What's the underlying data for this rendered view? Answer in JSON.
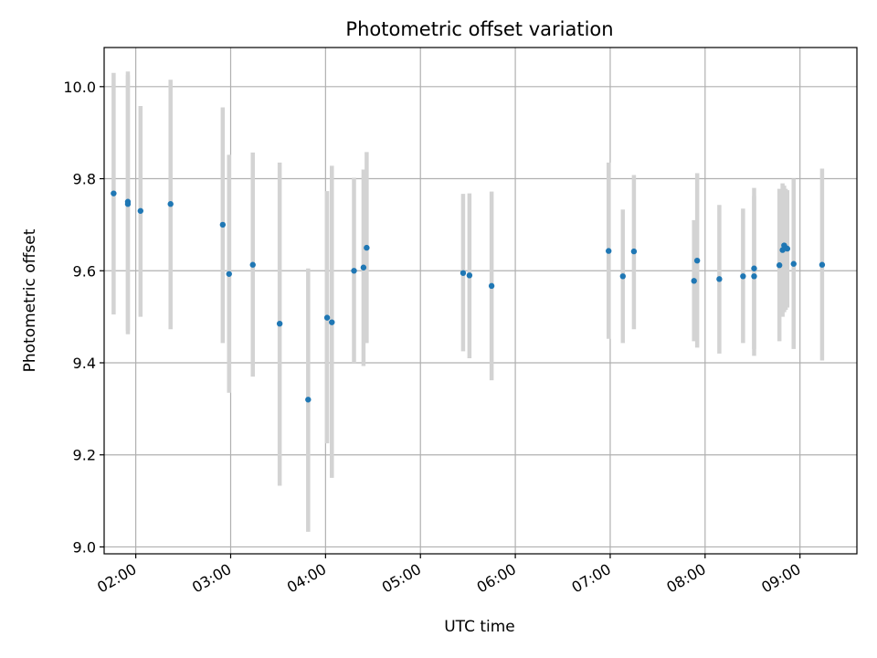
{
  "chart_data": {
    "type": "scatter",
    "title": "Photometric offset variation",
    "xlabel": "UTC time",
    "ylabel": "Photometric offset",
    "x_axis": {
      "kind": "time",
      "range": [
        "01:40",
        "09:36"
      ],
      "ticks": [
        "02:00",
        "03:00",
        "04:00",
        "05:00",
        "06:00",
        "07:00",
        "08:00",
        "09:00"
      ]
    },
    "y_axis": {
      "range": [
        8.985,
        10.085
      ],
      "ticks": [
        "9.0",
        "9.2",
        "9.4",
        "9.6",
        "9.8",
        "10.0"
      ]
    },
    "grid": true,
    "colors": {
      "marker": "#1f77b4",
      "errorbar": "#d3d3d3",
      "grid": "#b0b0b0"
    },
    "points": [
      {
        "x": "01:46",
        "y": 9.768,
        "ylo": 9.505,
        "yhi": 10.03
      },
      {
        "x": "01:55",
        "y": 9.75,
        "ylo": 9.47,
        "yhi": 10.033
      },
      {
        "x": "01:55",
        "y": 9.745,
        "ylo": 9.462,
        "yhi": 10.025
      },
      {
        "x": "02:03",
        "y": 9.73,
        "ylo": 9.5,
        "yhi": 9.958
      },
      {
        "x": "02:22",
        "y": 9.745,
        "ylo": 9.473,
        "yhi": 10.015
      },
      {
        "x": "02:55",
        "y": 9.7,
        "ylo": 9.443,
        "yhi": 9.955
      },
      {
        "x": "02:59",
        "y": 9.593,
        "ylo": 9.335,
        "yhi": 9.852
      },
      {
        "x": "03:14",
        "y": 9.613,
        "ylo": 9.37,
        "yhi": 9.857
      },
      {
        "x": "03:31",
        "y": 9.485,
        "ylo": 9.133,
        "yhi": 9.835
      },
      {
        "x": "03:49",
        "y": 9.32,
        "ylo": 9.033,
        "yhi": 9.605
      },
      {
        "x": "04:01",
        "y": 9.498,
        "ylo": 9.225,
        "yhi": 9.773
      },
      {
        "x": "04:04",
        "y": 9.488,
        "ylo": 9.15,
        "yhi": 9.828
      },
      {
        "x": "04:18",
        "y": 9.6,
        "ylo": 9.398,
        "yhi": 9.802
      },
      {
        "x": "04:24",
        "y": 9.607,
        "ylo": 9.393,
        "yhi": 9.82
      },
      {
        "x": "04:26",
        "y": 9.65,
        "ylo": 9.443,
        "yhi": 9.858
      },
      {
        "x": "05:27",
        "y": 9.595,
        "ylo": 9.425,
        "yhi": 9.767
      },
      {
        "x": "05:31",
        "y": 9.59,
        "ylo": 9.41,
        "yhi": 9.768
      },
      {
        "x": "05:45",
        "y": 9.567,
        "ylo": 9.362,
        "yhi": 9.772
      },
      {
        "x": "06:59",
        "y": 9.643,
        "ylo": 9.452,
        "yhi": 9.835
      },
      {
        "x": "07:08",
        "y": 9.588,
        "ylo": 9.443,
        "yhi": 9.733
      },
      {
        "x": "07:15",
        "y": 9.642,
        "ylo": 9.473,
        "yhi": 9.808
      },
      {
        "x": "07:53",
        "y": 9.578,
        "ylo": 9.447,
        "yhi": 9.71
      },
      {
        "x": "07:55",
        "y": 9.622,
        "ylo": 9.433,
        "yhi": 9.812
      },
      {
        "x": "08:09",
        "y": 9.582,
        "ylo": 9.42,
        "yhi": 9.743
      },
      {
        "x": "08:24",
        "y": 9.588,
        "ylo": 9.443,
        "yhi": 9.735
      },
      {
        "x": "08:31",
        "y": 9.588,
        "ylo": 9.415,
        "yhi": 9.762
      },
      {
        "x": "08:31",
        "y": 9.605,
        "ylo": 9.43,
        "yhi": 9.78
      },
      {
        "x": "08:47",
        "y": 9.612,
        "ylo": 9.447,
        "yhi": 9.778
      },
      {
        "x": "08:49",
        "y": 9.645,
        "ylo": 9.5,
        "yhi": 9.79
      },
      {
        "x": "08:50",
        "y": 9.655,
        "ylo": 9.51,
        "yhi": 9.785
      },
      {
        "x": "08:51",
        "y": 9.65,
        "ylo": 9.515,
        "yhi": 9.778
      },
      {
        "x": "08:52",
        "y": 9.648,
        "ylo": 9.52,
        "yhi": 9.775
      },
      {
        "x": "08:56",
        "y": 9.615,
        "ylo": 9.43,
        "yhi": 9.8
      },
      {
        "x": "09:14",
        "y": 9.613,
        "ylo": 9.405,
        "yhi": 9.822
      }
    ]
  }
}
